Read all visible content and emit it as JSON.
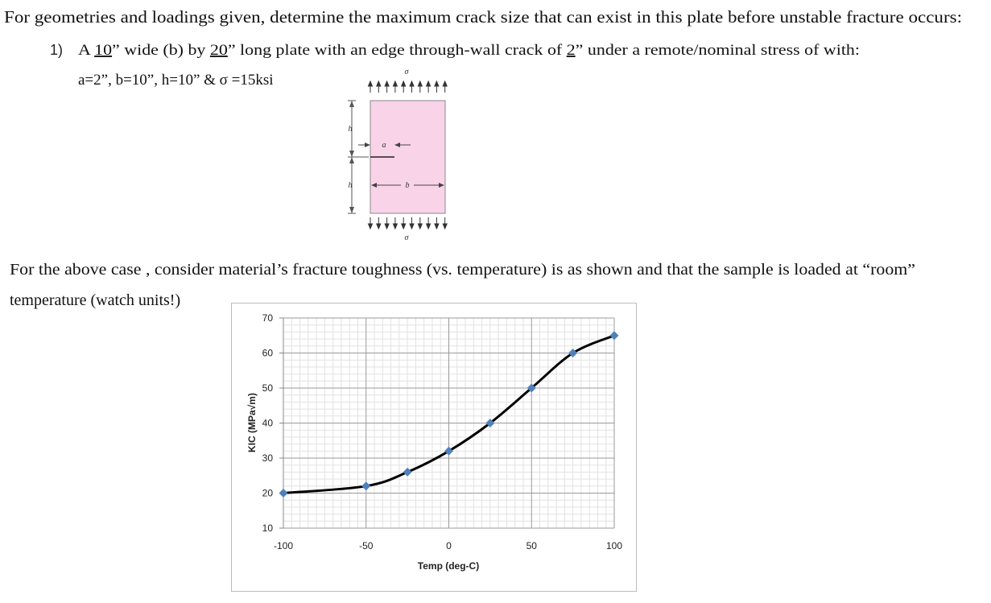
{
  "header": {
    "text": "For geometries and loadings given, determine the maximum crack size that can exist in this plate before unstable fracture occurs:"
  },
  "problem": {
    "number": "1)",
    "segments": [
      {
        "text": "A "
      },
      {
        "text": "10",
        "underline": true
      },
      {
        "text": "” wide (b) by "
      },
      {
        "text": "20",
        "underline": true
      },
      {
        "text": "” long plate with an edge through-wall crack of "
      },
      {
        "text": "2",
        "underline": true
      },
      {
        "text": "” under a remote/nominal stress of with:"
      }
    ],
    "given": "a=2”, b=10”, h=10” & σ =15ksi"
  },
  "diagram": {
    "sigma_top": "σ",
    "sigma_bottom": "σ",
    "h_top": "h",
    "h_bottom": "h",
    "a": "a",
    "b": "b"
  },
  "paragraph": {
    "lines": [
      "For the above case , consider material’s fracture toughness (vs. temperature) is as shown and that the sample is loaded at “room”",
      "temperature (watch units!)"
    ]
  },
  "chart_data": {
    "type": "line",
    "x_label": "Temp (deg-C)",
    "y_label": "KIC (MPa√m)",
    "x": [
      -100,
      -50,
      -25,
      0,
      25,
      50,
      75,
      100
    ],
    "series": [
      {
        "values": [
          20,
          22,
          26,
          32,
          40,
          50,
          60,
          65
        ],
        "color": "#000000",
        "marker_color": "#4f81bd"
      }
    ],
    "xlim": [
      -100,
      100
    ],
    "xticks": [
      -100,
      -50,
      0,
      50,
      100
    ],
    "ylim": [
      10,
      70
    ],
    "yticks": [
      10,
      20,
      30,
      40,
      50,
      60,
      70
    ],
    "grid": true,
    "minor_grid": true,
    "x_minor_divisions": 10,
    "y_minor_divisions": 5,
    "smooth": true
  }
}
